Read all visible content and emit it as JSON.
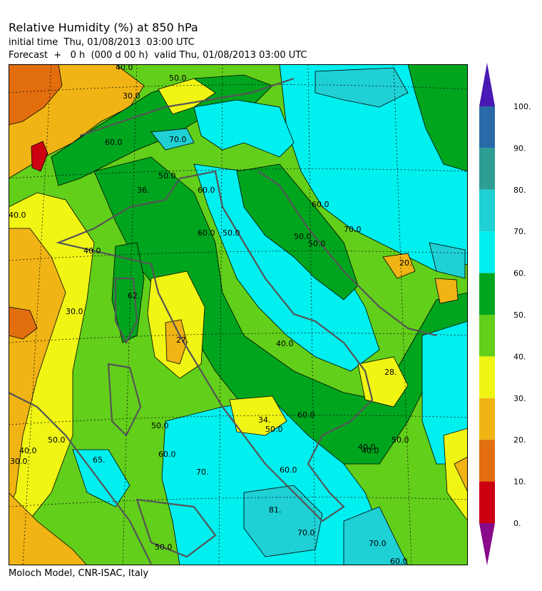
{
  "header": {
    "title": "Relative Humidity (%) at 850 hPa",
    "initial_time": "initial time  Thu, 01/08/2013  03:00 UTC",
    "forecast": "Forecast  +   0 h  (000 d 00 h)  valid Thu, 01/08/2013 03:00 UTC"
  },
  "footer": {
    "credit": "Moloch Model, CNR-ISAC, Italy"
  },
  "legend": {
    "ticks": [
      "100.",
      "90.",
      "80.",
      "70.",
      "60.",
      "50.",
      "40.",
      "30.",
      "20.",
      "10.",
      "0."
    ],
    "bands": [
      {
        "range": "90-100",
        "color": "#2a6aa8"
      },
      {
        "range": "80-90",
        "color": "#2e9e94"
      },
      {
        "range": "70-80",
        "color": "#1fd0d4"
      },
      {
        "range": "60-70",
        "color": "#00efef"
      },
      {
        "range": "50-60",
        "color": "#00a51e"
      },
      {
        "range": "40-50",
        "color": "#62cf1a"
      },
      {
        "range": "30-40",
        "color": "#f0f514"
      },
      {
        "range": "20-30",
        "color": "#f0b414"
      },
      {
        "range": "10-20",
        "color": "#e26e0e"
      },
      {
        "range": "0-10",
        "color": "#cc0010"
      }
    ],
    "over_color": "#4a18b4",
    "under_color": "#8a0a8a"
  },
  "map_labels": [
    "40.0",
    "50.0",
    "30.0",
    "60.0",
    "70.0",
    "36.",
    "60.0",
    "40.0",
    "40.0",
    "50.0",
    "60.0",
    "50.0",
    "60.0",
    "70.0",
    "50.0",
    "20.",
    "62.",
    "30.0",
    "27.",
    "40.0",
    "28.",
    "34.",
    "60.0",
    "50.0",
    "40.0",
    "50.0",
    "50.0",
    "65.",
    "50.0",
    "60.0",
    "70.",
    "60.0",
    "81.",
    "70.0",
    "70.0",
    "60.0",
    "50.0",
    "30.0",
    "40.0",
    "40.0",
    "50.0"
  ]
}
